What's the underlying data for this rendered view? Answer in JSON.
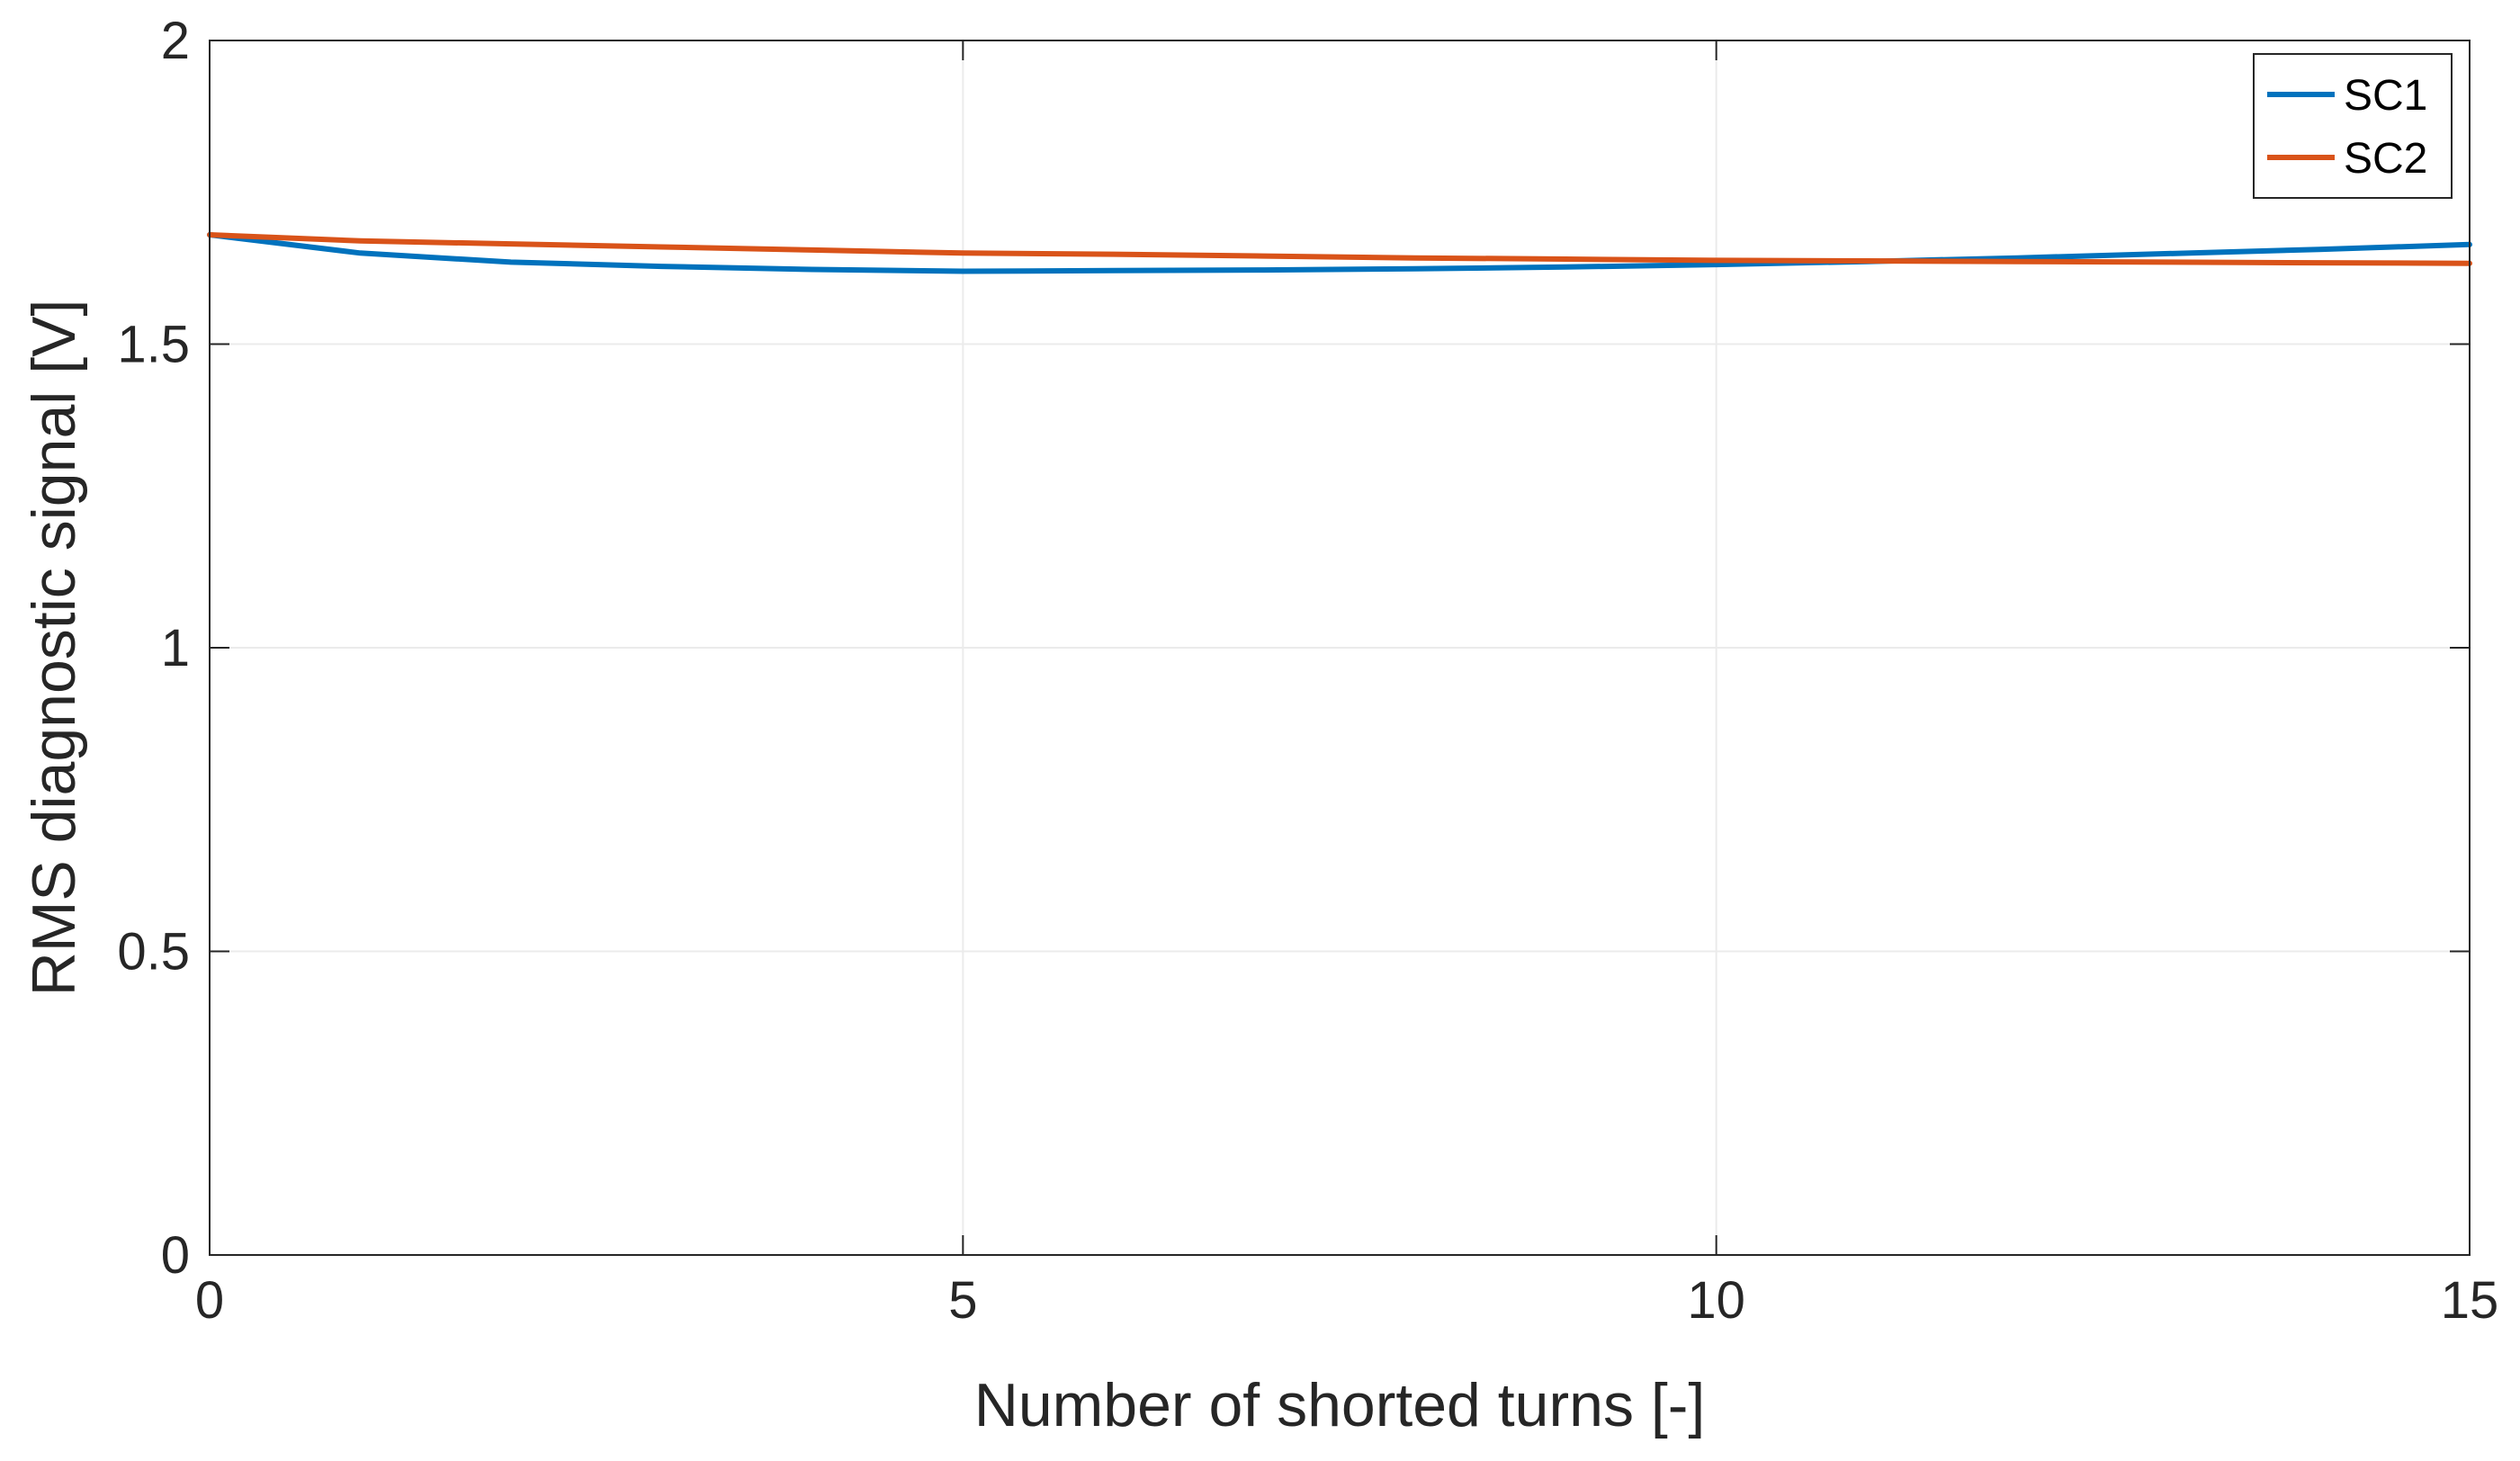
{
  "chart_data": {
    "type": "line",
    "title": "",
    "xlabel": "Number of shorted turns [-]",
    "ylabel": "RMS diagnostic signal [V]",
    "xlim": [
      0,
      15
    ],
    "ylim": [
      0,
      2
    ],
    "xticks": [
      0,
      5,
      10,
      15
    ],
    "xtick_labels": [
      "0",
      "5",
      "10",
      "15"
    ],
    "yticks": [
      0,
      0.5,
      1,
      1.5,
      2
    ],
    "ytick_labels": [
      "0",
      "0.5",
      "1",
      "1.5",
      "2"
    ],
    "grid": true,
    "legend_position": "top-right",
    "x": [
      0,
      1,
      2,
      3,
      4,
      5,
      6,
      7,
      8,
      9,
      10,
      11,
      12,
      13,
      14,
      15
    ],
    "series": [
      {
        "name": "SC1",
        "color": "#0072BD",
        "values": [
          1.68,
          1.65,
          1.635,
          1.628,
          1.623,
          1.62,
          1.621,
          1.622,
          1.624,
          1.627,
          1.631,
          1.636,
          1.642,
          1.649,
          1.656,
          1.664
        ]
      },
      {
        "name": "SC2",
        "color": "#D95319",
        "values": [
          1.68,
          1.67,
          1.665,
          1.66,
          1.655,
          1.65,
          1.648,
          1.645,
          1.642,
          1.64,
          1.638,
          1.637,
          1.636,
          1.635,
          1.634,
          1.633
        ]
      }
    ]
  }
}
